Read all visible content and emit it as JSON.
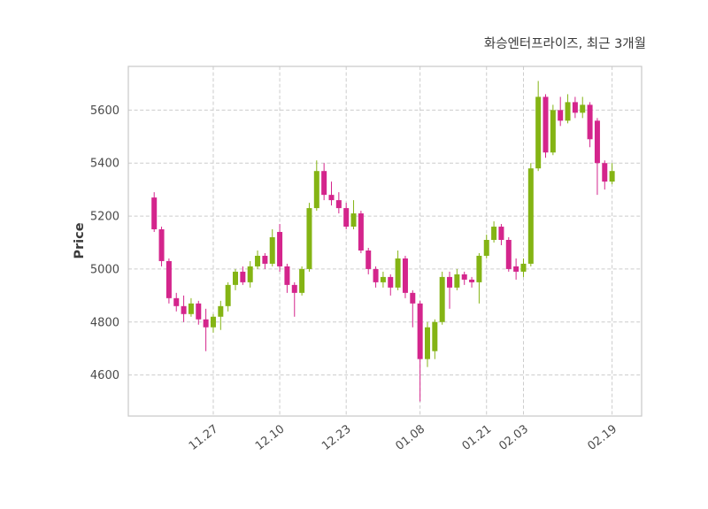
{
  "chart_data": {
    "type": "candlestick",
    "title": "화승엔터프라이즈, 최근 3개월",
    "ylabel": "Price",
    "ylim": [
      4445,
      5765
    ],
    "yticks": [
      4600,
      4800,
      5000,
      5200,
      5400,
      5600
    ],
    "xticks": [
      {
        "label": "11.27",
        "index": 8
      },
      {
        "label": "12.10",
        "index": 17
      },
      {
        "label": "12.23",
        "index": 26
      },
      {
        "label": "01.08",
        "index": 36
      },
      {
        "label": "01.21",
        "index": 45
      },
      {
        "label": "02.03",
        "index": 50
      },
      {
        "label": "02.19",
        "index": 62
      }
    ],
    "grid": "dashed",
    "legend": "none",
    "colors": {
      "up": "#84b414",
      "down": "#d4258c",
      "grid": "#cccccc",
      "axis_border": "#c8c8c8",
      "text": "#4a4a4a"
    },
    "candles_columns": [
      "date",
      "open",
      "high",
      "low",
      "close"
    ],
    "candles": [
      [
        "11.15",
        5270,
        5290,
        5140,
        5150
      ],
      [
        "11.18",
        5150,
        5160,
        5010,
        5030
      ],
      [
        "11.19",
        5030,
        5040,
        4870,
        4890
      ],
      [
        "11.20",
        4890,
        4910,
        4840,
        4860
      ],
      [
        "11.21",
        4860,
        4900,
        4800,
        4830
      ],
      [
        "11.22",
        4830,
        4890,
        4820,
        4870
      ],
      [
        "11.25",
        4870,
        4880,
        4790,
        4810
      ],
      [
        "11.26",
        4810,
        4850,
        4690,
        4780
      ],
      [
        "11.27",
        4780,
        4830,
        4760,
        4820
      ],
      [
        "11.28",
        4820,
        4880,
        4770,
        4860
      ],
      [
        "11.29",
        4860,
        4950,
        4840,
        4940
      ],
      [
        "12.02",
        4940,
        5000,
        4920,
        4990
      ],
      [
        "12.03",
        4990,
        5010,
        4940,
        4950
      ],
      [
        "12.04",
        4950,
        5030,
        4930,
        5010
      ],
      [
        "12.05",
        5010,
        5070,
        5000,
        5050
      ],
      [
        "12.06",
        5050,
        5060,
        5000,
        5020
      ],
      [
        "12.09",
        5020,
        5150,
        5010,
        5120
      ],
      [
        "12.10",
        5140,
        5170,
        4990,
        5010
      ],
      [
        "12.11",
        5010,
        5020,
        4910,
        4940
      ],
      [
        "12.12",
        4940,
        4950,
        4820,
        4910
      ],
      [
        "12.13",
        4910,
        5010,
        4900,
        5000
      ],
      [
        "12.16",
        5000,
        5250,
        4990,
        5230
      ],
      [
        "12.17",
        5230,
        5410,
        5220,
        5370
      ],
      [
        "12.18",
        5370,
        5400,
        5260,
        5280
      ],
      [
        "12.19",
        5280,
        5330,
        5240,
        5260
      ],
      [
        "12.20",
        5260,
        5290,
        5210,
        5230
      ],
      [
        "12.23",
        5230,
        5250,
        5150,
        5160
      ],
      [
        "12.24",
        5160,
        5260,
        5150,
        5210
      ],
      [
        "12.26",
        5210,
        5220,
        5060,
        5070
      ],
      [
        "12.27",
        5070,
        5080,
        4980,
        5000
      ],
      [
        "12.30",
        5000,
        5010,
        4930,
        4950
      ],
      [
        "12.31",
        4950,
        4990,
        4930,
        4970
      ],
      [
        "01.02",
        4970,
        4980,
        4900,
        4930
      ],
      [
        "01.03",
        4930,
        5070,
        4920,
        5040
      ],
      [
        "01.06",
        5040,
        5050,
        4890,
        4910
      ],
      [
        "01.07",
        4910,
        4920,
        4780,
        4870
      ],
      [
        "01.08",
        4870,
        4880,
        4500,
        4660
      ],
      [
        "01.09",
        4660,
        4800,
        4630,
        4780
      ],
      [
        "01.10",
        4690,
        4810,
        4660,
        4800
      ],
      [
        "01.13",
        4800,
        4990,
        4790,
        4970
      ],
      [
        "01.14",
        4970,
        4990,
        4850,
        4930
      ],
      [
        "01.15",
        4930,
        5000,
        4920,
        4980
      ],
      [
        "01.16",
        4980,
        4990,
        4940,
        4960
      ],
      [
        "01.17",
        4960,
        4970,
        4930,
        4950
      ],
      [
        "01.20",
        4950,
        5060,
        4870,
        5050
      ],
      [
        "01.21",
        5050,
        5130,
        5040,
        5110
      ],
      [
        "01.22",
        5110,
        5180,
        5100,
        5160
      ],
      [
        "01.23",
        5160,
        5170,
        5090,
        5110
      ],
      [
        "01.24",
        5110,
        5120,
        4990,
        5000
      ],
      [
        "01.31",
        5010,
        5040,
        4960,
        4990
      ],
      [
        "02.03",
        4990,
        5040,
        4970,
        5020
      ],
      [
        "02.04",
        5020,
        5400,
        5010,
        5380
      ],
      [
        "02.05",
        5380,
        5710,
        5370,
        5650
      ],
      [
        "02.06",
        5650,
        5660,
        5420,
        5440
      ],
      [
        "02.07",
        5440,
        5620,
        5430,
        5600
      ],
      [
        "02.10",
        5600,
        5650,
        5540,
        5560
      ],
      [
        "02.11",
        5560,
        5660,
        5550,
        5630
      ],
      [
        "02.12",
        5630,
        5650,
        5570,
        5590
      ],
      [
        "02.13",
        5590,
        5650,
        5570,
        5620
      ],
      [
        "02.14",
        5620,
        5630,
        5460,
        5490
      ],
      [
        "02.17",
        5560,
        5570,
        5280,
        5400
      ],
      [
        "02.18",
        5400,
        5410,
        5300,
        5330
      ],
      [
        "02.19",
        5330,
        5400,
        5320,
        5370
      ]
    ]
  }
}
